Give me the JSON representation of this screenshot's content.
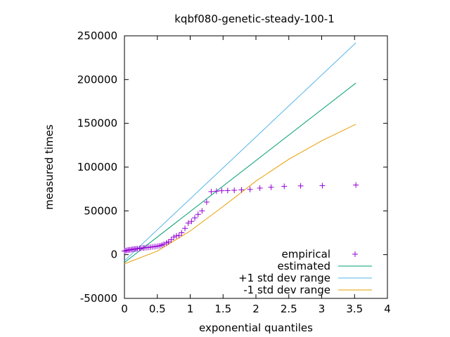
{
  "chart_data": {
    "type": "line",
    "title": "kqbf080-genetic-steady-100-1",
    "xlabel": "exponential quantiles",
    "ylabel": "measured times",
    "xlim": [
      0,
      4
    ],
    "ylim": [
      -50000,
      250000
    ],
    "x_ticks": [
      0,
      0.5,
      1,
      1.5,
      2,
      2.5,
      3,
      3.5,
      4
    ],
    "x_tick_labels": [
      "0",
      "0.5",
      "1",
      "1.5",
      "2",
      "2.5",
      "3",
      "3.5",
      "4"
    ],
    "y_ticks": [
      -50000,
      0,
      50000,
      100000,
      150000,
      200000,
      250000
    ],
    "y_tick_labels": [
      "-50000",
      "0",
      "50000",
      "100000",
      "150000",
      "200000",
      "250000"
    ],
    "grid": false,
    "legend_position": "bottom-right",
    "series": [
      {
        "name": "empirical",
        "style": "points",
        "marker": "+",
        "color": "#9400d3",
        "x": [
          0.0,
          0.02,
          0.04,
          0.06,
          0.08,
          0.1,
          0.12,
          0.14,
          0.16,
          0.18,
          0.2,
          0.23,
          0.25,
          0.28,
          0.3,
          0.33,
          0.36,
          0.39,
          0.42,
          0.45,
          0.48,
          0.51,
          0.54,
          0.57,
          0.6,
          0.64,
          0.67,
          0.71,
          0.75,
          0.79,
          0.83,
          0.87,
          0.92,
          0.97,
          1.02,
          1.07,
          1.12,
          1.18,
          1.25,
          1.32,
          1.4,
          1.48,
          1.57,
          1.67,
          1.78,
          1.91,
          2.06,
          2.23,
          2.43,
          2.68,
          3.01,
          3.52
        ],
        "y": [
          4000,
          4500,
          5000,
          5200,
          5500,
          5700,
          6000,
          6200,
          6400,
          6600,
          6800,
          7000,
          7300,
          7600,
          7800,
          8000,
          8200,
          8500,
          8800,
          9100,
          9400,
          9800,
          10200,
          11000,
          12000,
          13500,
          14500,
          17000,
          20000,
          21500,
          22000,
          25000,
          30000,
          36000,
          38000,
          42000,
          46000,
          50000,
          60000,
          72000,
          72500,
          73000,
          73200,
          73500,
          74000,
          74500,
          76000,
          77000,
          78000,
          78500,
          78800,
          79500
        ]
      },
      {
        "name": "estimated",
        "style": "line",
        "color": "#009e73",
        "x": [
          0.0,
          3.52
        ],
        "y": [
          -9000,
          196000
        ]
      },
      {
        "name": "+1 std dev range",
        "style": "line",
        "color": "#56b4e9",
        "x": [
          0.0,
          3.52
        ],
        "y": [
          -7000,
          242000
        ]
      },
      {
        "name": "-1 std dev range",
        "style": "line",
        "color": "#e69f00",
        "x": [
          0.0,
          0.5,
          1.0,
          1.5,
          2.0,
          2.5,
          3.0,
          3.52
        ],
        "y": [
          -10500,
          4000,
          27000,
          55000,
          84000,
          109000,
          130000,
          149000
        ]
      }
    ]
  }
}
